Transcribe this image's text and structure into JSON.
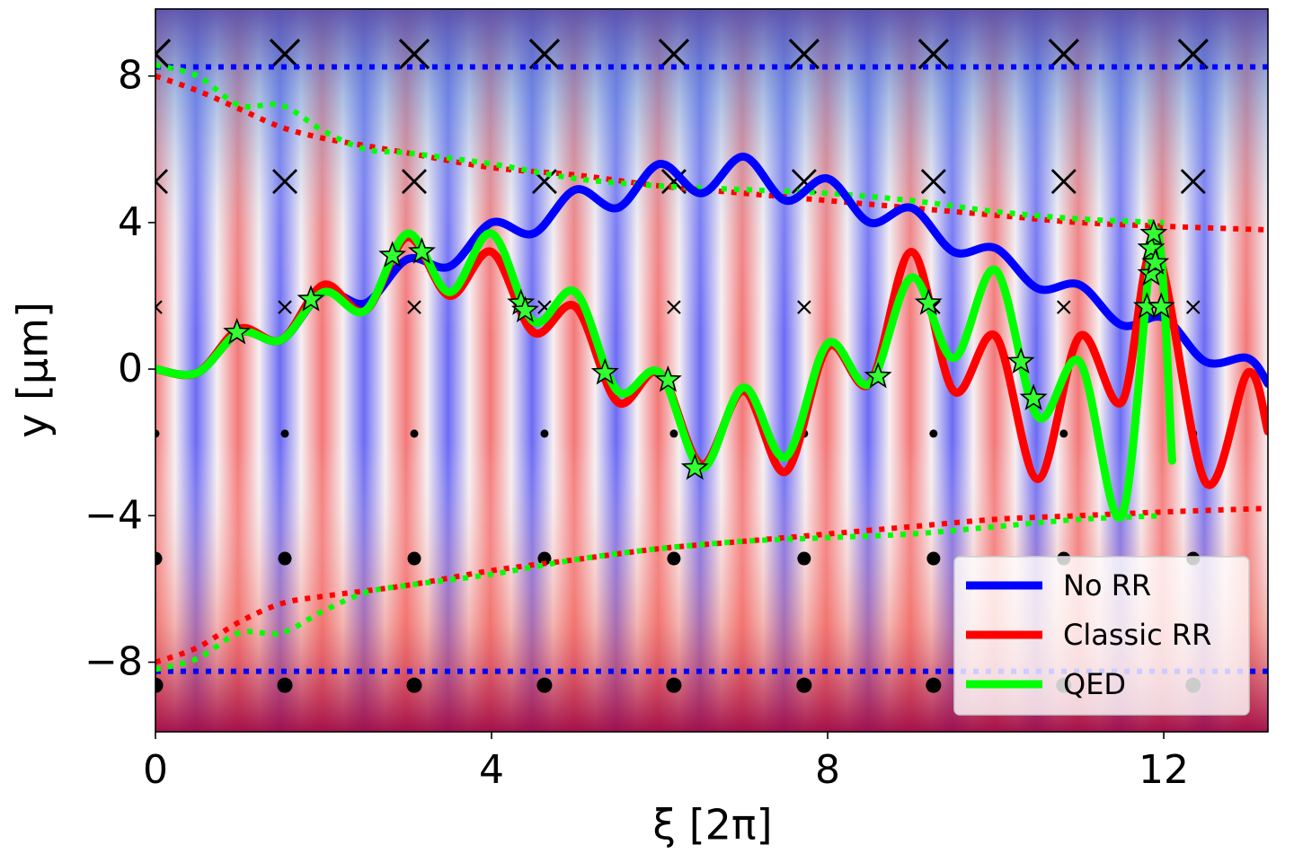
{
  "chart_data": {
    "type": "line",
    "xlabel": "ξ [2π]",
    "ylabel": "y [μm]",
    "xlim": [
      0,
      13.24
    ],
    "ylim": [
      -9.9,
      9.83
    ],
    "xticks": [
      0,
      4,
      8,
      12
    ],
    "yticks": [
      {
        "value": -8,
        "label": "−8"
      },
      {
        "value": -4,
        "label": "−4"
      },
      0,
      4,
      8
    ],
    "legend": "lower right",
    "series": [
      {
        "name": "No RR",
        "color": "#0000ff",
        "line_style": "solid",
        "x": [
          0,
          0.5,
          1,
          1.5,
          2,
          2.5,
          3,
          3.5,
          4,
          4.5,
          5,
          5.5,
          6,
          6.5,
          7,
          7.5,
          8,
          8.5,
          9,
          9.5,
          10,
          10.5,
          11,
          11.5,
          12,
          12.5,
          13,
          13.24
        ],
        "values": [
          0,
          -0.1,
          1.0,
          0.8,
          2.1,
          1.8,
          3.0,
          2.8,
          4.0,
          3.7,
          4.9,
          4.4,
          5.6,
          4.8,
          5.8,
          4.6,
          5.2,
          4.0,
          4.4,
          3.2,
          3.3,
          2.2,
          2.3,
          1.2,
          1.4,
          0.2,
          0.3,
          -0.4
        ]
      },
      {
        "name": "Classic RR",
        "color": "#ff0000",
        "line_style": "solid",
        "x": [
          0,
          0.5,
          1,
          1.5,
          2,
          2.5,
          3,
          3.5,
          4,
          4.5,
          5,
          5.5,
          6,
          6.5,
          7,
          7.5,
          8,
          8.5,
          9,
          9.5,
          10,
          10.5,
          11,
          11.5,
          11.9,
          12.5,
          13,
          13.24
        ],
        "values": [
          0,
          -0.1,
          1.1,
          0.8,
          2.3,
          1.6,
          3.6,
          2.0,
          3.2,
          1.0,
          1.7,
          -0.9,
          -0.1,
          -2.6,
          -0.6,
          -2.8,
          0.6,
          -0.4,
          3.2,
          -0.6,
          0.9,
          -3.0,
          0.9,
          -0.9,
          3.3,
          -3.1,
          -0.1,
          -1.7
        ]
      },
      {
        "name": "QED",
        "color": "#00ff00",
        "line_style": "solid",
        "x": [
          0,
          0.5,
          1,
          1.5,
          2,
          2.5,
          3,
          3.5,
          4,
          4.5,
          5,
          5.5,
          6,
          6.5,
          7,
          7.5,
          8,
          8.5,
          9,
          9.5,
          10,
          10.5,
          11,
          11.5,
          11.9,
          12.1
        ],
        "values": [
          0,
          -0.1,
          1.0,
          0.8,
          2.1,
          1.6,
          3.7,
          2.1,
          3.7,
          1.3,
          2.1,
          -0.6,
          -0.1,
          -2.7,
          -0.5,
          -2.4,
          0.7,
          -0.4,
          2.5,
          0.3,
          2.7,
          -1.3,
          0.2,
          -4.0,
          3.8,
          -2.5
        ]
      }
    ],
    "envelopes": [
      {
        "color": "#0000ff",
        "line_style": "dotted",
        "x": [
          0,
          13.24
        ],
        "values": [
          8.25,
          8.25
        ]
      },
      {
        "color": "#0000ff",
        "line_style": "dotted",
        "x": [
          0,
          13.24
        ],
        "values": [
          -8.25,
          -8.25
        ]
      },
      {
        "color": "#ff0000",
        "line_style": "dotted",
        "x": [
          0,
          0.5,
          1,
          1.5,
          2,
          2.5,
          3,
          4,
          5,
          6,
          7,
          8,
          9,
          10,
          11,
          12,
          13.24
        ],
        "values": [
          8.0,
          7.6,
          7.1,
          6.6,
          6.3,
          6.1,
          5.9,
          5.5,
          5.3,
          5.0,
          4.8,
          4.6,
          4.4,
          4.2,
          4.0,
          3.9,
          3.8
        ]
      },
      {
        "color": "#ff0000",
        "line_style": "dotted",
        "x": [
          0,
          0.5,
          1,
          1.5,
          2,
          3,
          4,
          5,
          6,
          7,
          8,
          9,
          10,
          11,
          12,
          13.24
        ],
        "values": [
          -8.0,
          -7.6,
          -6.9,
          -6.4,
          -6.2,
          -5.9,
          -5.5,
          -5.2,
          -4.9,
          -4.7,
          -4.5,
          -4.3,
          -4.1,
          -4.0,
          -3.9,
          -3.8
        ]
      },
      {
        "color": "#00ff00",
        "line_style": "dotted",
        "x": [
          0,
          0.5,
          1,
          1.5,
          2,
          2.5,
          3,
          4,
          5,
          6,
          7,
          8,
          9,
          10,
          11,
          12
        ],
        "values": [
          8.3,
          8.0,
          7.2,
          7.2,
          6.5,
          6.0,
          5.9,
          5.6,
          5.2,
          5.0,
          4.9,
          4.8,
          4.6,
          4.3,
          4.1,
          4.0
        ]
      },
      {
        "color": "#00ff00",
        "line_style": "dotted",
        "x": [
          0,
          0.5,
          1,
          1.5,
          2,
          2.5,
          3,
          4,
          5,
          6,
          7,
          8,
          9,
          10,
          11,
          12
        ],
        "values": [
          -8.2,
          -7.9,
          -7.2,
          -7.2,
          -6.6,
          -6.1,
          -5.9,
          -5.6,
          -5.2,
          -4.9,
          -4.7,
          -4.6,
          -4.5,
          -4.3,
          -4.1,
          -4.0
        ]
      }
    ],
    "stars": {
      "color": "#33ff33",
      "x": [
        0.97,
        1.85,
        2.82,
        3.17,
        4.35,
        4.4,
        5.35,
        6.1,
        6.42,
        8.6,
        9.2,
        10.3,
        10.45,
        11.8,
        11.85,
        11.85,
        11.88,
        11.9,
        11.97
      ],
      "values": [
        1.0,
        1.9,
        3.1,
        3.2,
        1.8,
        1.6,
        -0.1,
        -0.3,
        -2.7,
        -0.2,
        1.8,
        0.2,
        -0.8,
        1.7,
        2.6,
        3.3,
        3.7,
        2.9,
        1.7
      ]
    },
    "field_markers": {
      "color": "#000000",
      "x": [
        0,
        1.54,
        3.08,
        4.63,
        6.17,
        7.72,
        9.26,
        10.81,
        12.35
      ],
      "rows": [
        {
          "y": 8.6,
          "marker": "x",
          "size": "large"
        },
        {
          "y": 5.12,
          "marker": "x",
          "size": "medium"
        },
        {
          "y": 1.69,
          "marker": "x",
          "size": "small"
        },
        {
          "y": -1.76,
          "marker": "dot",
          "size": "small"
        },
        {
          "y": -5.17,
          "marker": "dot",
          "size": "medium"
        },
        {
          "y": -8.63,
          "marker": "dot",
          "size": "large"
        }
      ]
    }
  }
}
